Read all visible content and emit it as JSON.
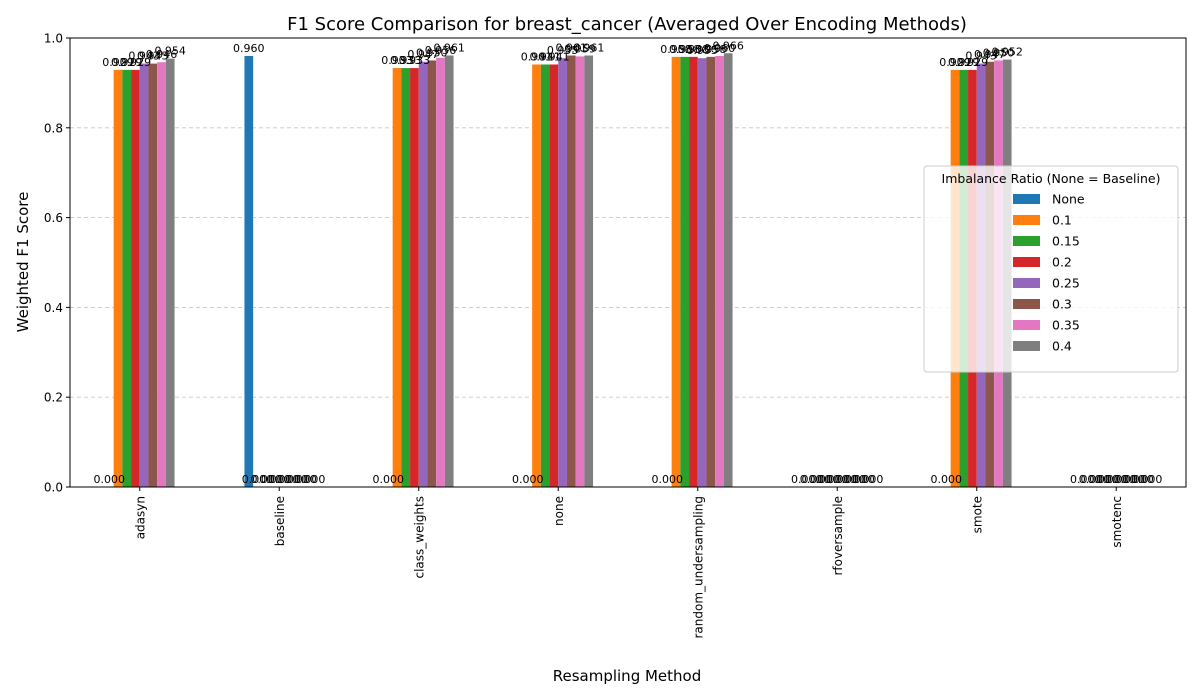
{
  "chart_data": {
    "type": "bar",
    "title": "F1 Score Comparison for breast_cancer (Averaged Over Encoding Methods)",
    "xlabel": "Resampling Method",
    "ylabel": "Weighted F1 Score",
    "ylim": [
      0,
      1.0
    ],
    "yticks": [
      "0.0",
      "0.2",
      "0.4",
      "0.6",
      "0.8",
      "1.0"
    ],
    "grid": "y-dashed",
    "categories": [
      "adasyn",
      "baseline",
      "class_weights",
      "none",
      "random_undersampling",
      "rfoversample",
      "smote",
      "smotenc"
    ],
    "legend": {
      "title": "Imbalance Ratio (None = Baseline)",
      "position": "right"
    },
    "series": [
      {
        "name": "None",
        "color": "#1f77b4",
        "values": [
          0.0,
          0.96,
          0.0,
          0.0,
          0.0,
          0.0,
          0.0,
          0.0
        ]
      },
      {
        "name": "0.1",
        "color": "#ff7f0e",
        "values": [
          0.929,
          0.0,
          0.933,
          0.941,
          0.958,
          0.0,
          0.929,
          0.0
        ]
      },
      {
        "name": "0.15",
        "color": "#2ca02c",
        "values": [
          0.929,
          0.0,
          0.933,
          0.941,
          0.958,
          0.0,
          0.929,
          0.0
        ]
      },
      {
        "name": "0.2",
        "color": "#d62728",
        "values": [
          0.929,
          0.0,
          0.933,
          0.941,
          0.958,
          0.0,
          0.929,
          0.0
        ]
      },
      {
        "name": "0.25",
        "color": "#9467bd",
        "values": [
          0.943,
          0.0,
          0.947,
          0.955,
          0.955,
          0.0,
          0.943,
          0.0
        ]
      },
      {
        "name": "0.3",
        "color": "#8c564b",
        "values": [
          0.943,
          0.0,
          0.95,
          0.961,
          0.958,
          0.0,
          0.947,
          0.0
        ]
      },
      {
        "name": "0.35",
        "color": "#e377c2",
        "values": [
          0.946,
          0.0,
          0.956,
          0.959,
          0.96,
          0.0,
          0.95,
          0.0
        ]
      },
      {
        "name": "0.4",
        "color": "#7f7f7f",
        "values": [
          0.954,
          0.0,
          0.961,
          0.961,
          0.966,
          0.0,
          0.952,
          0.0
        ]
      }
    ]
  }
}
